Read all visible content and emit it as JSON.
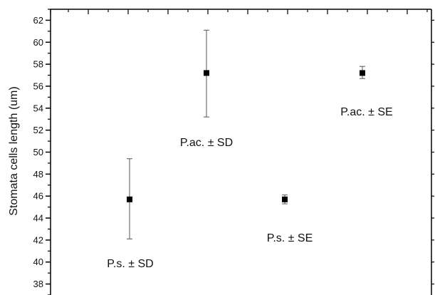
{
  "chart_data": {
    "type": "scatter",
    "title": "",
    "xlabel": "",
    "ylabel": "Stomata cells length (um)",
    "ylim": [
      37,
      63
    ],
    "grid": false,
    "y_ticks": [
      38,
      40,
      42,
      44,
      46,
      48,
      50,
      52,
      54,
      56,
      58,
      60,
      62
    ],
    "points": [
      {
        "label": "P.s. ± SD",
        "value": 45.7,
        "error_lower": 42.1,
        "error_upper": 49.4
      },
      {
        "label": "P.ac. ± SD",
        "value": 57.2,
        "error_lower": 53.2,
        "error_upper": 61.1
      },
      {
        "label": "P.s. ± SE",
        "value": 45.7,
        "error_lower": 45.3,
        "error_upper": 46.1
      },
      {
        "label": "P.ac. ± SE",
        "value": 57.2,
        "error_lower": 56.7,
        "error_upper": 57.8
      }
    ],
    "colors": {
      "marker": "#000000",
      "axis": "#000000",
      "error_bar": "#555555"
    }
  }
}
